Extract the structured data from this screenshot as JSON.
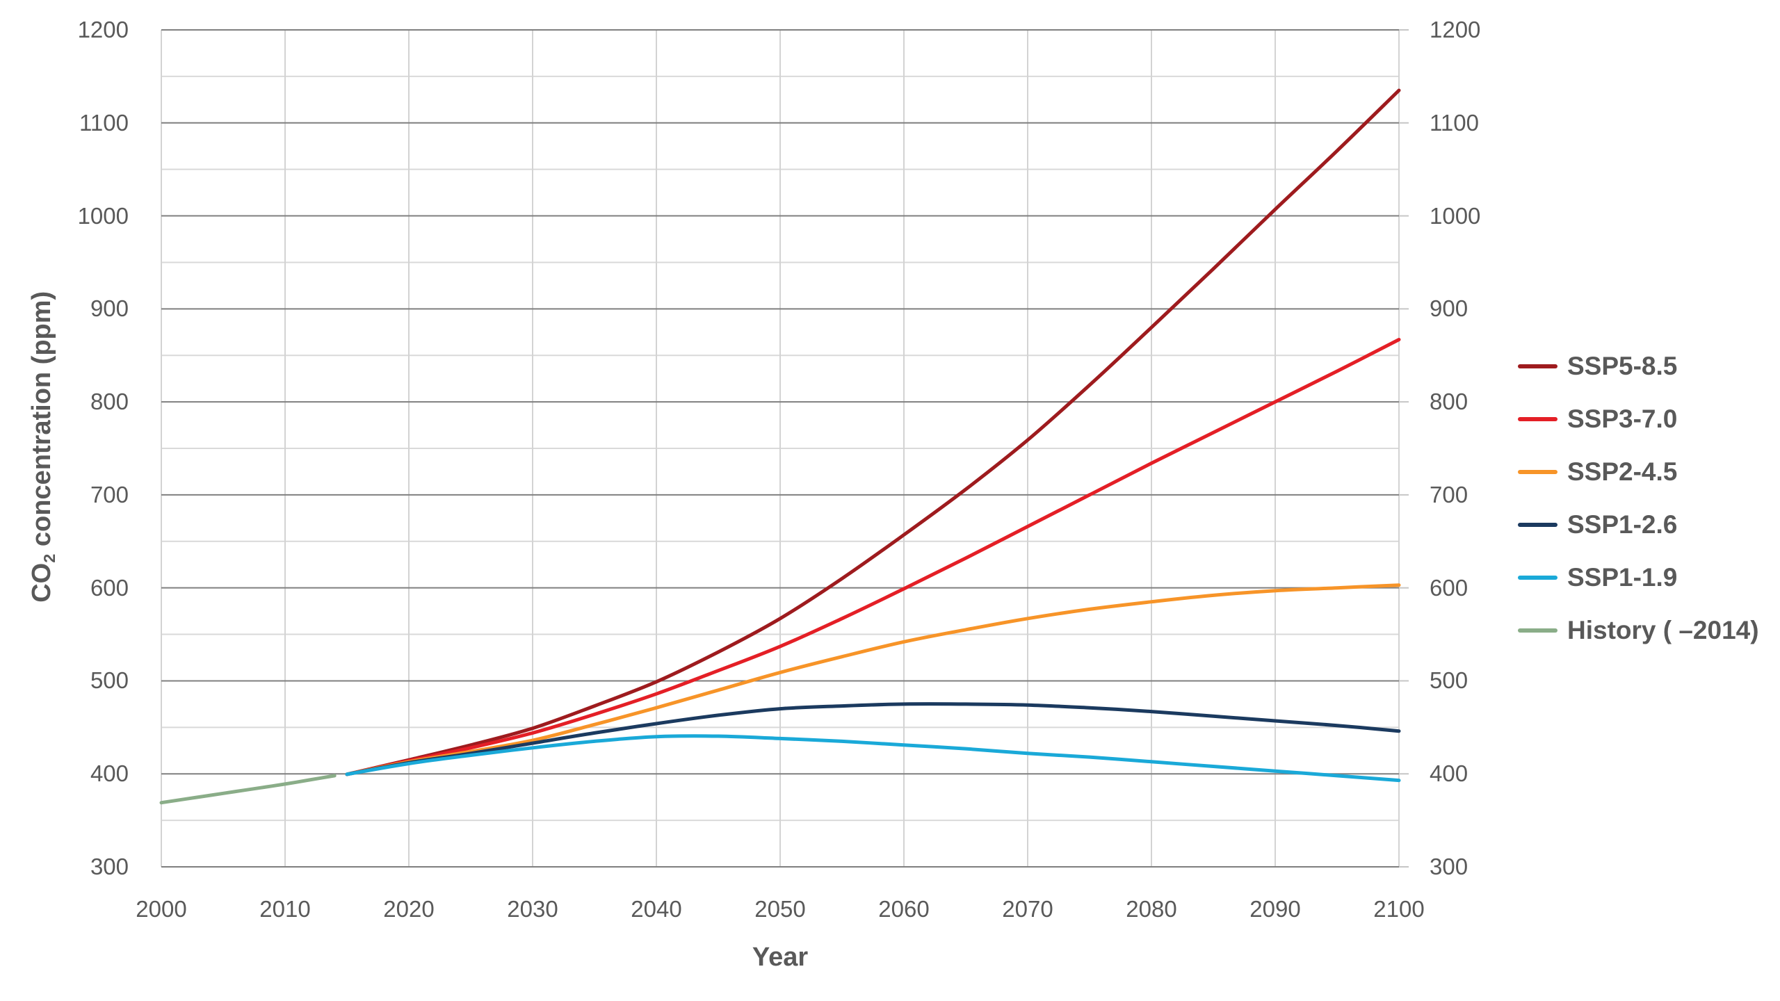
{
  "figure": {
    "background_color": "#FFFFFF",
    "text_color": "#595959"
  },
  "chart_data": {
    "type": "line",
    "title": "",
    "xlabel": "Year",
    "ylabel": "CO2 concentration (ppm)",
    "ylabel_prefix": "CO",
    "ylabel_sub": "2",
    "ylabel_suffix": " concentration (ppm)",
    "xlim": [
      2000,
      2100
    ],
    "ylim": [
      300,
      1200
    ],
    "x_ticks": [
      2000,
      2010,
      2020,
      2030,
      2040,
      2050,
      2060,
      2070,
      2080,
      2090,
      2100
    ],
    "y_ticks": [
      300,
      400,
      500,
      600,
      700,
      800,
      900,
      1000,
      1100,
      1200
    ],
    "y_minor_step": 50,
    "grid": "on",
    "legend_position": "right",
    "colors": {
      "grid_major": "#7F7F7F",
      "grid_minor": "#D9D9D9",
      "grid_vertical": "#D3D3D3",
      "tick_mark": "#C6C6C6",
      "label_text": "#595959"
    },
    "series": [
      {
        "name": "SSP5-8.5",
        "color": "#9E1B1E",
        "points": [
          [
            2015,
            399.5
          ],
          [
            2020,
            415
          ],
          [
            2025,
            431
          ],
          [
            2030,
            449
          ],
          [
            2035,
            473
          ],
          [
            2040,
            499
          ],
          [
            2045,
            531
          ],
          [
            2050,
            567
          ],
          [
            2055,
            610
          ],
          [
            2060,
            657
          ],
          [
            2065,
            706
          ],
          [
            2070,
            759
          ],
          [
            2075,
            818
          ],
          [
            2080,
            880
          ],
          [
            2085,
            943
          ],
          [
            2090,
            1007
          ],
          [
            2095,
            1070
          ],
          [
            2100,
            1135
          ]
        ]
      },
      {
        "name": "SSP3-7.0",
        "color": "#E41F26",
        "points": [
          [
            2015,
            399.5
          ],
          [
            2020,
            414
          ],
          [
            2025,
            428
          ],
          [
            2030,
            444
          ],
          [
            2035,
            464
          ],
          [
            2040,
            486
          ],
          [
            2045,
            511
          ],
          [
            2050,
            537
          ],
          [
            2055,
            567
          ],
          [
            2060,
            599
          ],
          [
            2065,
            632
          ],
          [
            2070,
            666
          ],
          [
            2075,
            700
          ],
          [
            2080,
            734
          ],
          [
            2085,
            767
          ],
          [
            2090,
            800
          ],
          [
            2095,
            833
          ],
          [
            2100,
            867
          ]
        ]
      },
      {
        "name": "SSP2-4.5",
        "color": "#F79428",
        "points": [
          [
            2015,
            399.5
          ],
          [
            2020,
            413
          ],
          [
            2025,
            424
          ],
          [
            2030,
            436
          ],
          [
            2035,
            453
          ],
          [
            2040,
            471
          ],
          [
            2045,
            490
          ],
          [
            2050,
            509
          ],
          [
            2055,
            526
          ],
          [
            2060,
            542
          ],
          [
            2065,
            555
          ],
          [
            2070,
            567
          ],
          [
            2075,
            577
          ],
          [
            2080,
            585
          ],
          [
            2085,
            592
          ],
          [
            2090,
            597
          ],
          [
            2095,
            600
          ],
          [
            2100,
            603
          ]
        ]
      },
      {
        "name": "SSP1-2.6",
        "color": "#1B3A5F",
        "points": [
          [
            2015,
            399.5
          ],
          [
            2020,
            412
          ],
          [
            2025,
            422
          ],
          [
            2030,
            433
          ],
          [
            2035,
            444
          ],
          [
            2040,
            454
          ],
          [
            2045,
            463
          ],
          [
            2050,
            470
          ],
          [
            2055,
            473
          ],
          [
            2060,
            475
          ],
          [
            2065,
            475
          ],
          [
            2070,
            474
          ],
          [
            2075,
            471
          ],
          [
            2080,
            467
          ],
          [
            2085,
            462
          ],
          [
            2090,
            457
          ],
          [
            2095,
            452
          ],
          [
            2100,
            446
          ]
        ]
      },
      {
        "name": "SSP1-1.9",
        "color": "#1AA9D8",
        "points": [
          [
            2015,
            399.5
          ],
          [
            2020,
            411
          ],
          [
            2025,
            420
          ],
          [
            2030,
            428
          ],
          [
            2035,
            435
          ],
          [
            2040,
            440
          ],
          [
            2045,
            440.5
          ],
          [
            2050,
            438
          ],
          [
            2055,
            435
          ],
          [
            2060,
            431
          ],
          [
            2065,
            427
          ],
          [
            2070,
            422
          ],
          [
            2075,
            418
          ],
          [
            2080,
            413
          ],
          [
            2085,
            408
          ],
          [
            2090,
            403
          ],
          [
            2095,
            398
          ],
          [
            2100,
            393
          ]
        ]
      },
      {
        "name": "History ( –2014)",
        "color": "#8AAD88",
        "points": [
          [
            2000,
            369
          ],
          [
            2002,
            373
          ],
          [
            2004,
            377
          ],
          [
            2006,
            381
          ],
          [
            2008,
            385
          ],
          [
            2010,
            389
          ],
          [
            2012,
            393.5
          ],
          [
            2014,
            398
          ]
        ]
      }
    ]
  }
}
